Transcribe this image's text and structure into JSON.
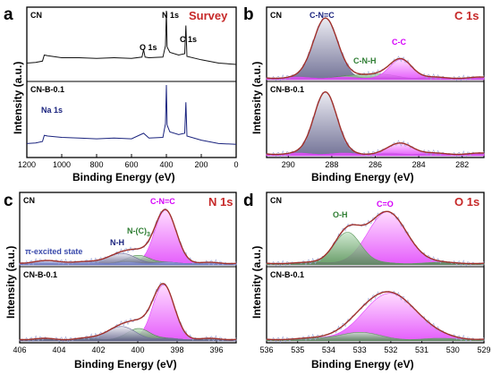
{
  "chart_data": [
    {
      "type": "line",
      "panel": "a",
      "title": "Survey",
      "xlabel": "Binding Energy (eV)",
      "ylabel": "Intensity (a.u.)",
      "xlim": [
        1200,
        0
      ],
      "xticks": [
        1200,
        1000,
        800,
        600,
        400,
        200,
        0
      ],
      "series": [
        {
          "name": "CN",
          "color": "#111111",
          "points": [
            [
              1200,
              0.22
            ],
            [
              1150,
              0.23
            ],
            [
              1110,
              0.25
            ],
            [
              1100,
              0.34
            ],
            [
              1080,
              0.33
            ],
            [
              1000,
              0.3
            ],
            [
              900,
              0.3
            ],
            [
              800,
              0.29
            ],
            [
              700,
              0.3
            ],
            [
              600,
              0.29
            ],
            [
              540,
              0.31
            ],
            [
              531,
              0.42
            ],
            [
              522,
              0.31
            ],
            [
              500,
              0.3
            ],
            [
              420,
              0.31
            ],
            [
              405,
              0.48
            ],
            [
              400,
              1.0
            ],
            [
              396,
              0.46
            ],
            [
              380,
              0.38
            ],
            [
              330,
              0.34
            ],
            [
              295,
              0.36
            ],
            [
              288,
              0.78
            ],
            [
              282,
              0.32
            ],
            [
              200,
              0.27
            ],
            [
              100,
              0.22
            ],
            [
              0,
              0.2
            ]
          ]
        },
        {
          "name": "CN-B-0.1",
          "color": "#1a237e",
          "points": [
            [
              1200,
              0.15
            ],
            [
              1150,
              0.16
            ],
            [
              1110,
              0.18
            ],
            [
              1100,
              0.27
            ],
            [
              1080,
              0.26
            ],
            [
              1000,
              0.24
            ],
            [
              900,
              0.23
            ],
            [
              800,
              0.22
            ],
            [
              700,
              0.23
            ],
            [
              600,
              0.22
            ],
            [
              531,
              0.3
            ],
            [
              500,
              0.23
            ],
            [
              420,
              0.24
            ],
            [
              405,
              0.44
            ],
            [
              400,
              1.0
            ],
            [
              396,
              0.42
            ],
            [
              380,
              0.32
            ],
            [
              330,
              0.28
            ],
            [
              295,
              0.3
            ],
            [
              288,
              0.75
            ],
            [
              282,
              0.26
            ],
            [
              200,
              0.2
            ],
            [
              100,
              0.15
            ],
            [
              0,
              0.14
            ]
          ]
        }
      ],
      "samples": [
        "CN",
        "CN-B-0.1"
      ],
      "annotations": [
        "N 1s",
        "O 1s",
        "C 1s",
        "Na 1s"
      ]
    },
    {
      "type": "line",
      "panel": "b",
      "title": "C 1s",
      "xlabel": "Binding Energy (eV)",
      "ylabel": "Intensity (a.u.)",
      "xlim": [
        291,
        281
      ],
      "xticks": [
        290,
        288,
        286,
        284,
        282
      ],
      "subpanels": [
        {
          "sample": "CN",
          "peaks": [
            {
              "label": "C-N=C",
              "center": 288.3,
              "height": 0.92,
              "width": 0.55,
              "color": "#6d6d9a"
            },
            {
              "label": "C-N-H",
              "center": 286.2,
              "height": 0.06,
              "width": 0.8,
              "color": "#4c8a4c"
            },
            {
              "label": "C-C",
              "center": 284.8,
              "height": 0.28,
              "width": 0.5,
              "color": "#e040fb"
            }
          ]
        },
        {
          "sample": "CN-B-0.1",
          "peaks": [
            {
              "label": "C-N=C",
              "center": 288.3,
              "height": 0.93,
              "width": 0.52,
              "color": "#6d6d9a"
            },
            {
              "label": "C-C",
              "center": 284.8,
              "height": 0.16,
              "width": 0.55,
              "color": "#e040fb"
            }
          ]
        }
      ],
      "annotations": [
        "C-N=C",
        "C-N-H",
        "C-C"
      ]
    },
    {
      "type": "line",
      "panel": "c",
      "title": "N 1s",
      "xlabel": "Binding Energy (eV)",
      "ylabel": "Intensity (a.u.)",
      "xlim": [
        406,
        395
      ],
      "xticks": [
        406,
        404,
        402,
        400,
        398,
        396
      ],
      "subpanels": [
        {
          "sample": "CN",
          "peaks": [
            {
              "label": "C-N=C",
              "center": 398.6,
              "height": 0.8,
              "width": 0.55,
              "color": "#e040fb"
            },
            {
              "label": "N-(C)3",
              "center": 399.9,
              "height": 0.12,
              "width": 0.55,
              "color": "#4c8a4c"
            },
            {
              "label": "N-H",
              "center": 400.9,
              "height": 0.14,
              "width": 0.75,
              "color": "#6d6d9a"
            },
            {
              "label": "π-excited state",
              "center": 404.3,
              "height": 0.03,
              "width": 0.9,
              "color": "#7986cb"
            }
          ]
        },
        {
          "sample": "CN-B-0.1",
          "peaks": [
            {
              "label": "C-N=C",
              "center": 398.7,
              "height": 0.8,
              "width": 0.55,
              "color": "#e040fb"
            },
            {
              "label": "N-(C)3",
              "center": 399.9,
              "height": 0.16,
              "width": 0.55,
              "color": "#4c8a4c"
            },
            {
              "label": "N-H",
              "center": 400.9,
              "height": 0.18,
              "width": 0.75,
              "color": "#6d6d9a"
            }
          ]
        }
      ],
      "annotations": [
        "C-N=C",
        "N-(C)",
        "3",
        "N-H",
        "π-excited state"
      ]
    },
    {
      "type": "line",
      "panel": "d",
      "title": "O 1s",
      "xlabel": "Binding Energy (eV)",
      "ylabel": "Intensity (a.u.)",
      "xlim": [
        536,
        529
      ],
      "xticks": [
        536,
        535,
        534,
        533,
        532,
        531,
        530,
        529
      ],
      "subpanels": [
        {
          "sample": "CN",
          "peaks": [
            {
              "label": "C=O",
              "center": 532.1,
              "height": 0.78,
              "width": 0.62,
              "color": "#e040fb"
            },
            {
              "label": "O-H",
              "center": 533.4,
              "height": 0.48,
              "width": 0.42,
              "color": "#5e9a5e"
            }
          ]
        },
        {
          "sample": "CN-B-0.1",
          "peaks": [
            {
              "label": "C=O",
              "center": 532.0,
              "height": 0.68,
              "width": 0.85,
              "color": "#e040fb"
            },
            {
              "label": "O-H",
              "center": 533.1,
              "height": 0.1,
              "width": 0.6,
              "color": "#5e9a5e"
            }
          ]
        }
      ],
      "annotations": [
        "C=O",
        "O-H"
      ]
    }
  ],
  "colors": {
    "envelope": "#a0302a",
    "title_red": "#c62828",
    "annotation_blue": "#1a237e",
    "annotation_green": "#2e7d32",
    "annotation_magenta": "#d500f9"
  }
}
